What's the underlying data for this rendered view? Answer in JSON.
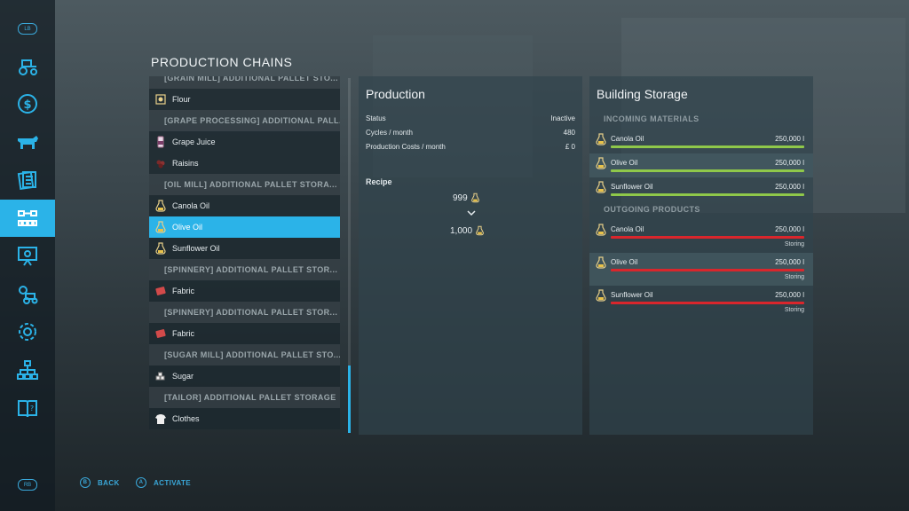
{
  "sidebar": {
    "top_button": "LB",
    "bottom_button": "RB",
    "items": [
      {
        "icon": "tractor-icon"
      },
      {
        "icon": "dollar-icon"
      },
      {
        "icon": "cow-icon"
      },
      {
        "icon": "contracts-icon"
      },
      {
        "icon": "production-chain-icon",
        "active": true
      },
      {
        "icon": "presentation-icon"
      },
      {
        "icon": "vehicle-settings-icon"
      },
      {
        "icon": "gear-icon"
      },
      {
        "icon": "hierarchy-icon"
      },
      {
        "icon": "help-book-icon"
      }
    ]
  },
  "page_title": "PRODUCTION CHAINS",
  "list": {
    "rows": [
      {
        "type": "header",
        "label": "[GRAIN MILL] ADDITIONAL PALLET STO..."
      },
      {
        "type": "item",
        "label": "Flour",
        "icon": "flour-icon"
      },
      {
        "type": "header",
        "label": "[GRAPE PROCESSING] ADDITIONAL PALL..."
      },
      {
        "type": "item",
        "label": "Grape Juice",
        "icon": "grape-juice-icon"
      },
      {
        "type": "item",
        "label": "Raisins",
        "icon": "raisins-icon"
      },
      {
        "type": "header",
        "label": "[OIL MILL] ADDITIONAL PALLET STORA..."
      },
      {
        "type": "item",
        "label": "Canola Oil",
        "icon": "oil-bottle-icon"
      },
      {
        "type": "item",
        "label": "Olive Oil",
        "icon": "oil-bottle-icon",
        "selected": true
      },
      {
        "type": "item",
        "label": "Sunflower Oil",
        "icon": "oil-bottle-icon"
      },
      {
        "type": "header",
        "label": "[SPINNERY] ADDITIONAL PALLET STOR..."
      },
      {
        "type": "item",
        "label": "Fabric",
        "icon": "fabric-icon"
      },
      {
        "type": "header",
        "label": "[SPINNERY] ADDITIONAL PALLET STOR..."
      },
      {
        "type": "item",
        "label": "Fabric",
        "icon": "fabric-icon"
      },
      {
        "type": "header",
        "label": "[SUGAR MILL] ADDITIONAL PALLET STO..."
      },
      {
        "type": "item",
        "label": "Sugar",
        "icon": "sugar-icon"
      },
      {
        "type": "header",
        "label": "[TAILOR] ADDITIONAL PALLET STORAGE"
      },
      {
        "type": "item",
        "label": "Clothes",
        "icon": "clothes-icon"
      }
    ]
  },
  "production": {
    "title": "Production",
    "status_label": "Status",
    "status_value": "Inactive",
    "cycles_label": "Cycles / month",
    "cycles_value": "480",
    "costs_label": "Production Costs / month",
    "costs_value": "£ 0",
    "recipe_label": "Recipe",
    "recipe_input": "999",
    "recipe_output": "1,000"
  },
  "storage": {
    "title": "Building Storage",
    "incoming_label": "INCOMING MATERIALS",
    "outgoing_label": "OUTGOING PRODUCTS",
    "incoming": [
      {
        "name": "Canola Oil",
        "value": "250,000 l",
        "fill": 1.0
      },
      {
        "name": "Olive Oil",
        "value": "250,000 l",
        "fill": 1.0
      },
      {
        "name": "Sunflower Oil",
        "value": "250,000 l",
        "fill": 1.0
      }
    ],
    "outgoing": [
      {
        "name": "Canola Oil",
        "value": "250,000 l",
        "mode": "Storing",
        "fill": 1.0
      },
      {
        "name": "Olive Oil",
        "value": "250,000 l",
        "mode": "Storing",
        "fill": 1.0
      },
      {
        "name": "Sunflower Oil",
        "value": "250,000 l",
        "mode": "Storing",
        "fill": 1.0
      }
    ]
  },
  "footer": {
    "back_key": "B",
    "back_label": "BACK",
    "activate_key": "A",
    "activate_label": "ACTIVATE"
  },
  "colors": {
    "accent": "#2bb3e8",
    "incoming_bar": "#8fc84a",
    "outgoing_bar": "#d9262c"
  }
}
